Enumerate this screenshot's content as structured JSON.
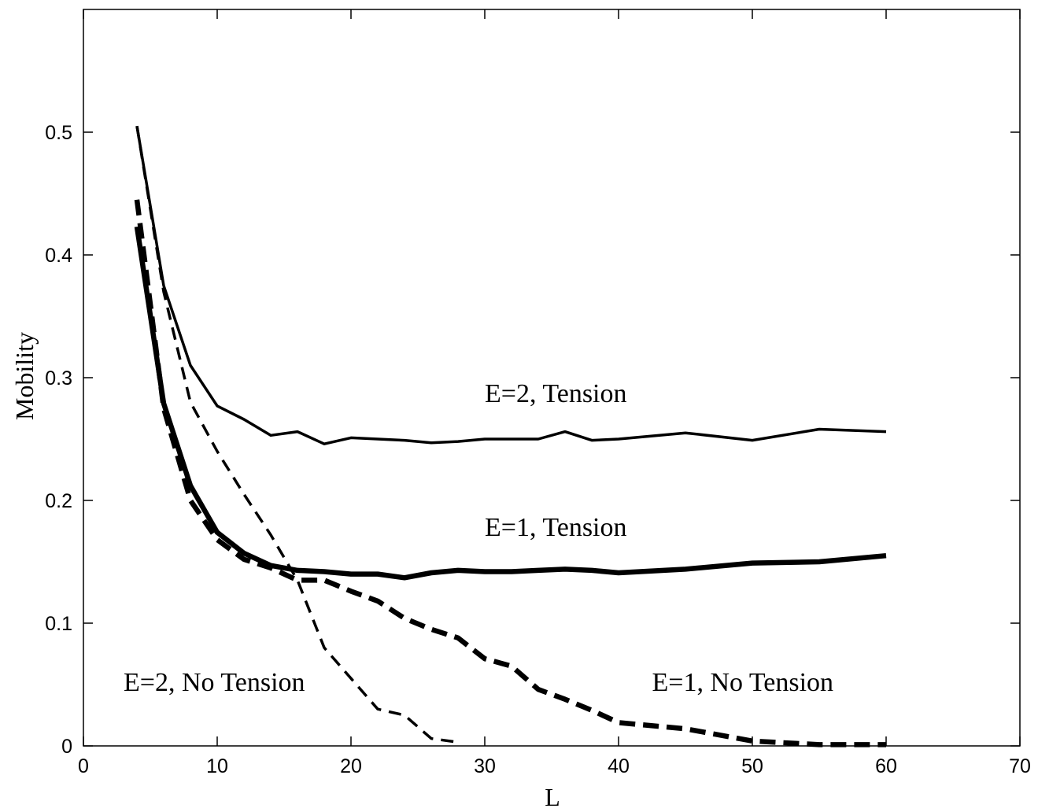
{
  "chart_data": {
    "type": "line",
    "title": "",
    "xlabel": "L",
    "ylabel": "Mobility",
    "xlim": [
      0,
      70
    ],
    "ylim": [
      0,
      0.6
    ],
    "xticks": [
      0,
      10,
      20,
      30,
      40,
      50,
      60,
      70
    ],
    "yticks": [
      0,
      0.1,
      0.2,
      0.3,
      0.4,
      0.5
    ],
    "xtick_labels": [
      "0",
      "10",
      "20",
      "30",
      "40",
      "50",
      "60",
      "70"
    ],
    "ytick_labels": [
      "0",
      "0.1",
      "0.2",
      "0.3",
      "0.4",
      "0.5"
    ],
    "grid": false,
    "legend": "none",
    "series": [
      {
        "name": "E=2, Tension",
        "style": "solid",
        "weight": "thin",
        "color": "#000000",
        "x": [
          4,
          6,
          8,
          10,
          12,
          14,
          16,
          18,
          20,
          22,
          24,
          26,
          28,
          30,
          32,
          34,
          36,
          38,
          40,
          45,
          50,
          55,
          60
        ],
        "y": [
          0.505,
          0.375,
          0.31,
          0.277,
          0.266,
          0.253,
          0.256,
          0.246,
          0.251,
          0.25,
          0.249,
          0.247,
          0.248,
          0.25,
          0.25,
          0.25,
          0.256,
          0.249,
          0.25,
          0.255,
          0.249,
          0.258,
          0.256
        ]
      },
      {
        "name": "E=1, Tension",
        "style": "solid",
        "weight": "thick",
        "color": "#000000",
        "x": [
          4,
          6,
          8,
          10,
          12,
          14,
          16,
          18,
          20,
          22,
          24,
          26,
          28,
          30,
          32,
          34,
          36,
          38,
          40,
          45,
          50,
          55,
          60
        ],
        "y": [
          0.423,
          0.279,
          0.212,
          0.174,
          0.157,
          0.147,
          0.143,
          0.142,
          0.14,
          0.14,
          0.137,
          0.141,
          0.143,
          0.142,
          0.142,
          0.143,
          0.144,
          0.143,
          0.141,
          0.144,
          0.149,
          0.15,
          0.155
        ]
      },
      {
        "name": "E=2, No Tension",
        "style": "dashed",
        "weight": "thin",
        "color": "#000000",
        "x": [
          4,
          6,
          8,
          10,
          12,
          14,
          16,
          18,
          20,
          22,
          24,
          26,
          28
        ],
        "y": [
          0.505,
          0.37,
          0.28,
          0.24,
          0.205,
          0.172,
          0.135,
          0.08,
          0.055,
          0.03,
          0.025,
          0.006,
          0.003
        ]
      },
      {
        "name": "E=1, No Tension",
        "style": "dashed",
        "weight": "thick",
        "color": "#000000",
        "x": [
          4,
          6,
          8,
          10,
          12,
          14,
          16,
          18,
          20,
          22,
          24,
          26,
          28,
          30,
          32,
          34,
          36,
          38,
          40,
          45,
          50,
          55,
          60
        ],
        "y": [
          0.445,
          0.275,
          0.2,
          0.168,
          0.152,
          0.145,
          0.135,
          0.135,
          0.126,
          0.118,
          0.104,
          0.095,
          0.088,
          0.071,
          0.065,
          0.046,
          0.038,
          0.029,
          0.019,
          0.014,
          0.004,
          0.001,
          0.001
        ]
      }
    ],
    "annotations": [
      {
        "text": "E=2, Tension",
        "x": 30,
        "y": 0.28
      },
      {
        "text": "E=1, Tension",
        "x": 30,
        "y": 0.171
      },
      {
        "text": "E=2, No Tension",
        "x": 3,
        "y": 0.045
      },
      {
        "text": "E=1, No Tension",
        "x": 42.5,
        "y": 0.045
      }
    ]
  }
}
